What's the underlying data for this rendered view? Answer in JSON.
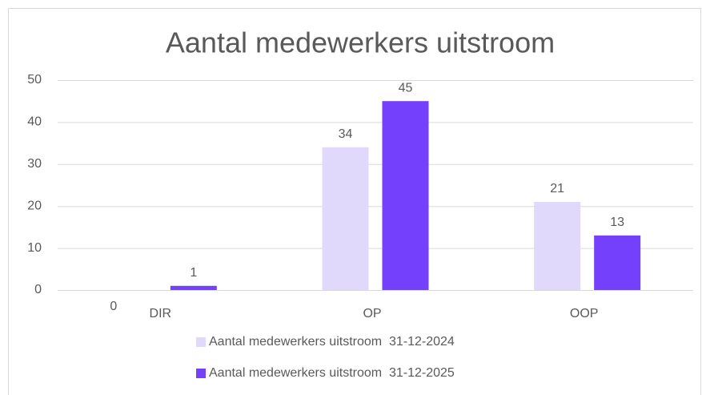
{
  "chart_data": {
    "type": "bar",
    "title": "Aantal medewerkers uitstroom",
    "categories": [
      "DIR",
      "OP",
      "OOP"
    ],
    "series": [
      {
        "name": "Aantal medewerkers uitstroom  31-12-2024",
        "color": "#e0d9fc",
        "values": [
          0,
          34,
          21
        ]
      },
      {
        "name": "Aantal medewerkers uitstroom  31-12-2025",
        "color": "#7540fc",
        "values": [
          1,
          45,
          13
        ]
      }
    ],
    "ylim": [
      0,
      50
    ],
    "yticks": [
      0,
      10,
      20,
      30,
      40,
      50
    ],
    "grid": true,
    "legend": "bottom"
  }
}
